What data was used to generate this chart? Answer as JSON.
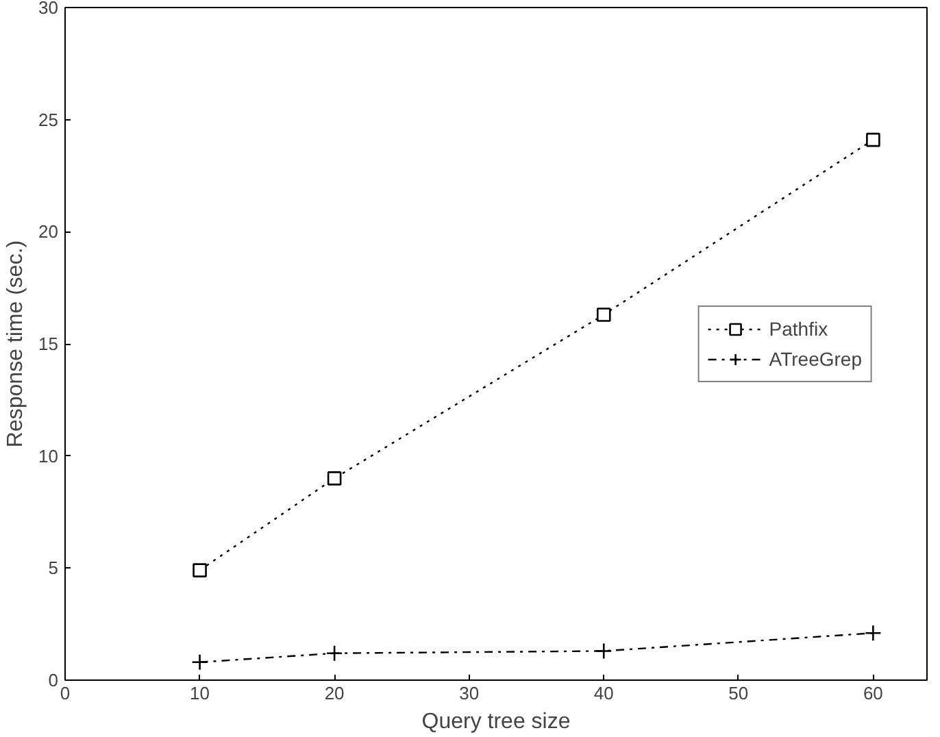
{
  "chart_data": {
    "type": "line",
    "xlabel": "Query tree size",
    "ylabel": "Response time (sec.)",
    "x": [
      10,
      20,
      40,
      60
    ],
    "series": [
      {
        "name": "Pathfix",
        "color": "#000000",
        "values": [
          4.9,
          9.0,
          16.3,
          24.1
        ],
        "marker": "square",
        "line_style": "dotted"
      },
      {
        "name": "ATreeGrep",
        "color": "#000000",
        "values": [
          0.8,
          1.2,
          1.3,
          2.1
        ],
        "marker": "cross",
        "line_style": "dashdot"
      }
    ],
    "xlim": [
      0,
      64
    ],
    "xticks": [
      0,
      10,
      20,
      30,
      40,
      50,
      60
    ],
    "ylim": [
      0,
      30
    ],
    "yticks": [
      0,
      5,
      10,
      15,
      20,
      25,
      30
    ],
    "grid": false,
    "legend": "center right"
  }
}
